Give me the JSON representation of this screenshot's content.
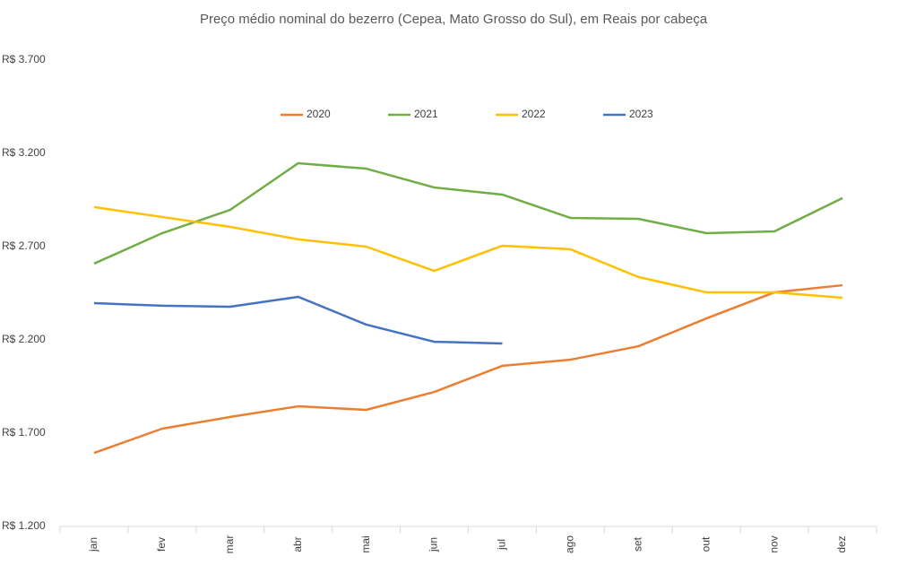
{
  "chart_data": {
    "type": "line",
    "title": "Preço médio nominal do bezerro (Cepea, Mato Grosso do Sul), em Reais por cabeça",
    "categories": [
      "jan",
      "fev",
      "mar",
      "abr",
      "mai",
      "jun",
      "jul",
      "ago",
      "set",
      "out",
      "nov",
      "dez"
    ],
    "series": [
      {
        "name": "2020",
        "color": "#ed7d31",
        "values": [
          1594,
          1724,
          1787,
          1844,
          1825,
          1921,
          2061,
          2094,
          2166,
          2315,
          2455,
          2493
        ]
      },
      {
        "name": "2021",
        "color": "#70ad47",
        "values": [
          2609,
          2772,
          2897,
          3147,
          3118,
          3017,
          2979,
          2854,
          2849,
          2772,
          2782,
          2960
        ]
      },
      {
        "name": "2022",
        "color": "#ffc000",
        "values": [
          2912,
          2859,
          2806,
          2739,
          2700,
          2570,
          2705,
          2686,
          2537,
          2455,
          2455,
          2426
        ]
      },
      {
        "name": "2023",
        "color": "#4472c4",
        "values": [
          2397,
          2383,
          2378,
          2431,
          2282,
          2190,
          2181,
          null,
          null,
          null,
          null,
          null
        ]
      }
    ],
    "ylim": [
      1200,
      3700
    ],
    "yticks": [
      {
        "value": 1200,
        "label": "R$ 1.200"
      },
      {
        "value": 1700,
        "label": "R$ 1.700"
      },
      {
        "value": 2200,
        "label": "R$ 2.200"
      },
      {
        "value": 2700,
        "label": "R$ 2.700"
      },
      {
        "value": 3200,
        "label": "R$ 3.200"
      },
      {
        "value": 3700,
        "label": "R$ 3.700"
      }
    ],
    "grid": false,
    "legend": "top"
  }
}
